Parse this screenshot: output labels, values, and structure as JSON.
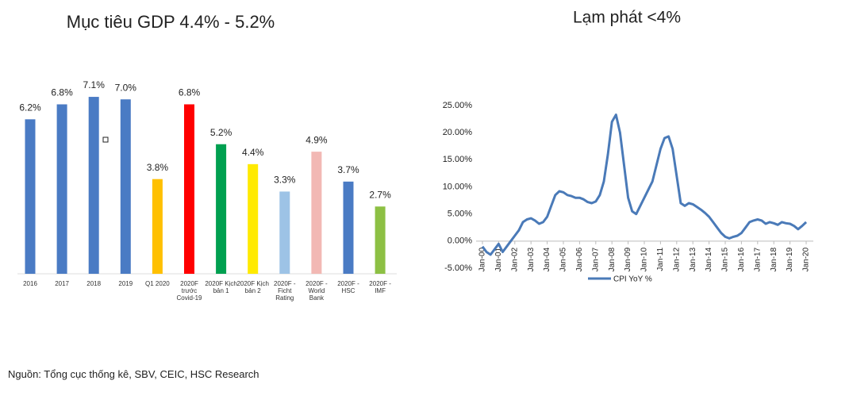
{
  "chart_data": [
    {
      "type": "bar",
      "title": "Mục tiêu GDP 4.4% - 5.2%",
      "categories": [
        "2016",
        "2017",
        "2018",
        "2019",
        "Q1 2020",
        "2020F\ntrước\nCovid-19",
        "2020F Kịch\nbản 1",
        "2020F Kịch\nbản 2",
        "2020F -\nFicht\nRating",
        "2020F -\nWorld\nBank",
        "2020F -\nHSC",
        "2020F -\nIMF"
      ],
      "values": [
        6.2,
        6.8,
        7.1,
        7.0,
        3.8,
        6.8,
        5.2,
        4.4,
        3.3,
        4.9,
        3.7,
        2.7
      ],
      "value_labels": [
        "6.2%",
        "6.8%",
        "7.1%",
        "7.0%",
        "3.8%",
        "6.8%",
        "5.2%",
        "4.4%",
        "3.3%",
        "4.9%",
        "3.7%",
        "2.7%"
      ],
      "colors": [
        "#4a7bc4",
        "#4a7bc4",
        "#4a7bc4",
        "#4a7bc4",
        "#ffc000",
        "#ff0000",
        "#00a050",
        "#ffea00",
        "#9dc3e6",
        "#f2b8b4",
        "#4a7bc4",
        "#8dc044"
      ]
    },
    {
      "type": "line",
      "title": "Lạm phát <4%",
      "categories": [
        "Jan-00",
        null,
        null,
        null,
        "Jan-01",
        null,
        null,
        null,
        "Jan-02",
        null,
        null,
        null,
        "Jan-03",
        null,
        null,
        null,
        "Jan-04",
        null,
        null,
        null,
        "Jan-05",
        null,
        null,
        null,
        "Jan-06",
        null,
        null,
        null,
        "Jan-07",
        null,
        null,
        null,
        "Jan-08",
        null,
        null,
        null,
        "Jan-09",
        null,
        null,
        null,
        "Jan-10",
        null,
        null,
        null,
        "Jan-11",
        null,
        null,
        null,
        "Jan-12",
        null,
        null,
        null,
        "Jan-13",
        null,
        null,
        null,
        "Jan-14",
        null,
        null,
        null,
        "Jan-15",
        null,
        null,
        null,
        "Jan-16",
        null,
        null,
        null,
        "Jan-17",
        null,
        null,
        null,
        "Jan-18",
        null,
        null,
        null,
        "Jan-19",
        null,
        null,
        null,
        "Jan-20"
      ],
      "series": [
        {
          "name": "CPI YoY %",
          "color": "#4a7ab8",
          "values": [
            -1,
            -2,
            -2.5,
            -1.5,
            -0.5,
            -2,
            -1,
            0,
            1,
            2,
            3.5,
            4,
            4.2,
            3.8,
            3.2,
            3.5,
            4.5,
            6.5,
            8.5,
            9.2,
            9,
            8.5,
            8.3,
            8,
            8,
            7.7,
            7.2,
            7,
            7.3,
            8.5,
            11,
            16,
            22,
            23.3,
            20,
            14,
            8,
            5.5,
            5,
            6.5,
            8,
            9.5,
            11,
            14,
            17,
            19,
            19.3,
            17,
            12,
            7,
            6.5,
            7,
            6.8,
            6.3,
            5.8,
            5.2,
            4.5,
            3.5,
            2.5,
            1.5,
            0.8,
            0.5,
            0.8,
            1,
            1.5,
            2.5,
            3.5,
            3.8,
            4,
            3.8,
            3.2,
            3.5,
            3.3,
            3,
            3.5,
            3.3,
            3.2,
            2.8,
            2.2,
            2.8,
            3.5
          ]
        }
      ],
      "ylim": [
        -5,
        25
      ],
      "yticks": [
        {
          "value": -5,
          "label": "-5.00%"
        },
        {
          "value": 0,
          "label": "0.00%"
        },
        {
          "value": 5,
          "label": "5.00%"
        },
        {
          "value": 10,
          "label": "10.00%"
        },
        {
          "value": 15,
          "label": "15.00%"
        },
        {
          "value": 20,
          "label": "20.00%"
        },
        {
          "value": 25,
          "label": "25.00%"
        }
      ],
      "grid": false,
      "legend": "bottom"
    }
  ],
  "source": "Nguồn: Tổng cục thống kê, SBV, CEIC, HSC Research"
}
